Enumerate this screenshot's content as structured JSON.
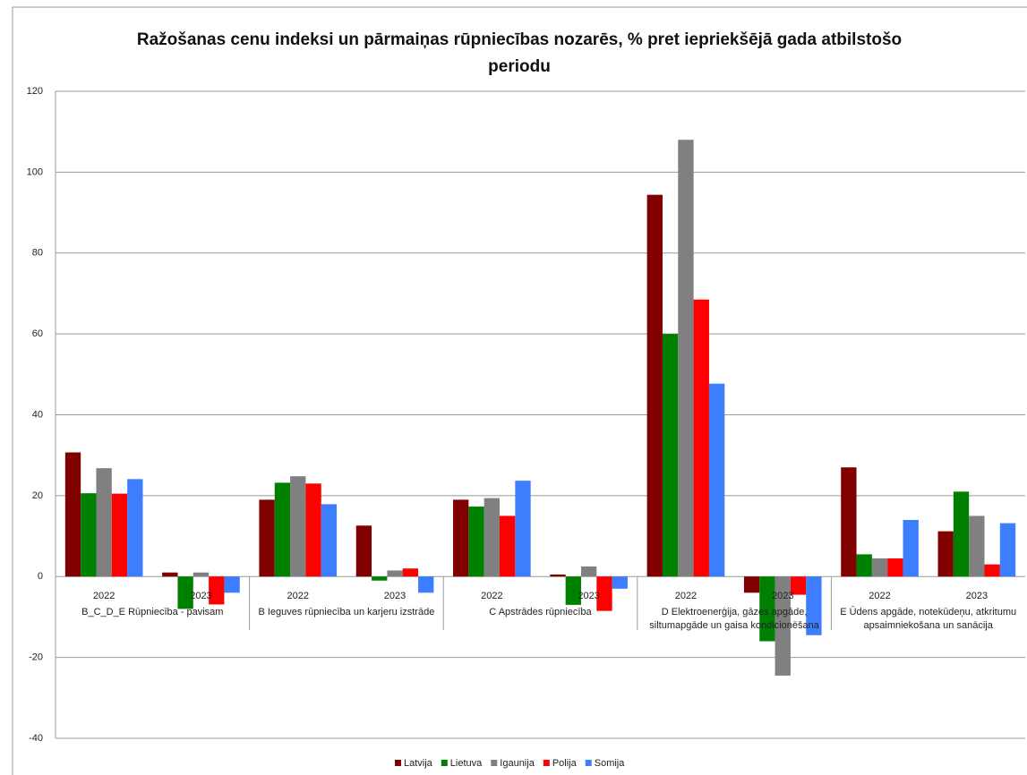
{
  "chart_data": {
    "type": "bar",
    "title": "Ražošanas cenu indeksi un pārmaiņas rūpniecības nozarēs, % pret iepriekšējā gada atbilstošo periodu",
    "groups": [
      {
        "name": "B_C_D_E Rūpniecība - pavisam",
        "categories": [
          "2022",
          "2023"
        ]
      },
      {
        "name": "B Ieguves rūpniecība un karjeru izstrāde",
        "categories": [
          "2022",
          "2023"
        ]
      },
      {
        "name": "C Apstrādes rūpniecība",
        "categories": [
          "2022",
          "2023"
        ]
      },
      {
        "name": "D Elektroenerģija, gāzes apgāde, siltumapgāde un gaisa kondicionēšana",
        "categories": [
          "2022",
          "2023"
        ]
      },
      {
        "name": "E Ūdens apgāde, notekūdeņu, atkritumu apsaimniekošana un sanācija",
        "categories": [
          "2022",
          "2023"
        ]
      }
    ],
    "series": [
      {
        "name": "Latvija",
        "color": "#800000",
        "values": [
          30.7,
          1,
          19,
          12.6,
          19,
          0.5,
          94.4,
          -4,
          27,
          11.2
        ]
      },
      {
        "name": "Lietuva",
        "color": "#008000",
        "values": [
          20.6,
          -8,
          23.2,
          -1,
          17.3,
          -7,
          60,
          -16,
          5.5,
          21
        ]
      },
      {
        "name": "Igaunija",
        "color": "#808080",
        "values": [
          26.8,
          1,
          24.8,
          1.5,
          19.4,
          2.5,
          108,
          -24.5,
          4.5,
          15
        ]
      },
      {
        "name": "Polija",
        "color": "#ff0000",
        "values": [
          20.5,
          -6.9,
          23,
          2,
          15,
          -8.5,
          68.5,
          -4.5,
          4.5,
          3
        ]
      },
      {
        "name": "Somija",
        "color": "#3d7eff",
        "values": [
          24.1,
          -4,
          17.9,
          -4,
          23.7,
          -3,
          47.7,
          -14.5,
          14,
          13.2
        ]
      }
    ],
    "ylim": [
      -40,
      120
    ],
    "yticks": [
      -40,
      -20,
      0,
      20,
      40,
      60,
      80,
      100,
      120
    ],
    "grid": true,
    "legend": "bottom"
  }
}
